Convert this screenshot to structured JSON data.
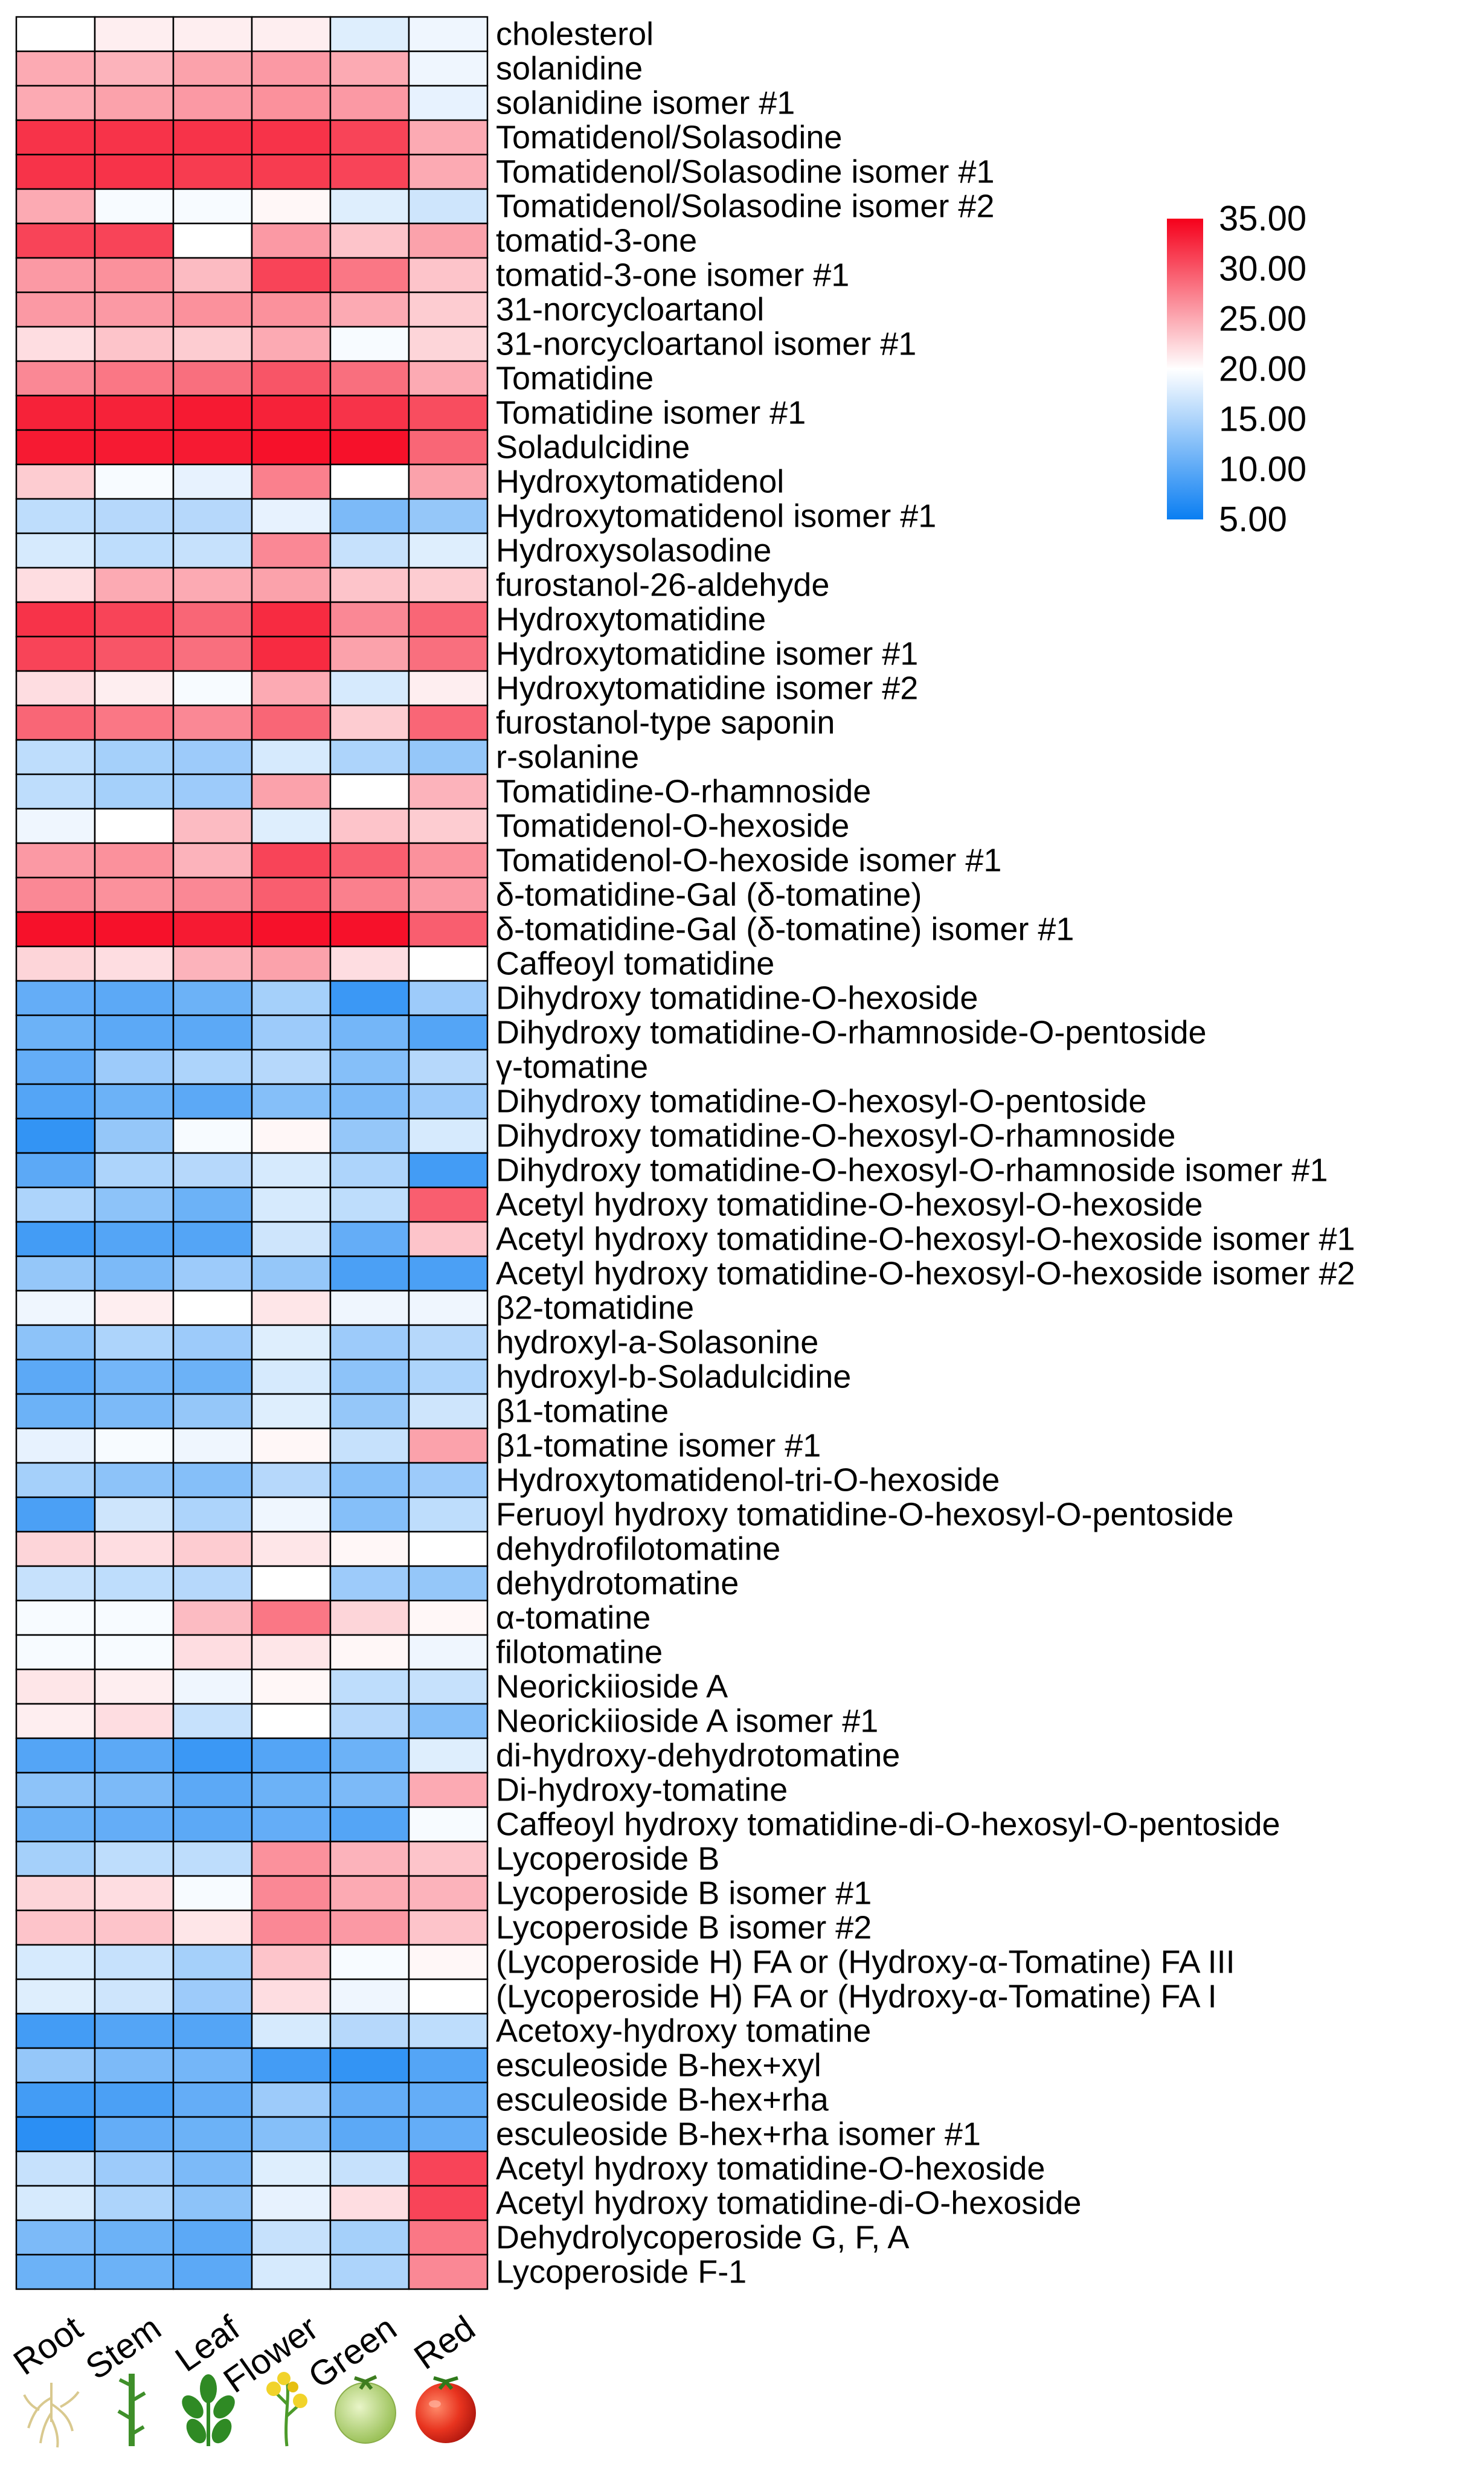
{
  "chart_data": {
    "type": "heatmap",
    "title": "",
    "columns": [
      "Root",
      "Stem",
      "Leaf",
      "Flower",
      "Green",
      "Red"
    ],
    "rows": [
      "cholesterol",
      "solanidine",
      "solanidine isomer #1",
      "Tomatidenol/Solasodine",
      "Tomatidenol/Solasodine isomer #1",
      "Tomatidenol/Solasodine isomer #2",
      "tomatid-3-one",
      "tomatid-3-one isomer #1",
      "31-norcycloartanol",
      "31-norcycloartanol isomer #1",
      "Tomatidine",
      "Tomatidine isomer #1",
      "Soladulcidine",
      "Hydroxytomatidenol",
      "Hydroxytomatidenol isomer #1",
      "Hydroxysolasodine",
      "furostanol-26-aldehyde",
      "Hydroxytomatidine",
      "Hydroxytomatidine isomer #1",
      "Hydroxytomatidine isomer #2",
      "furostanol-type saponin",
      "r-solanine",
      "Tomatidine-O-rhamnoside",
      "Tomatidenol-O-hexoside",
      "Tomatidenol-O-hexoside isomer #1",
      "δ-tomatidine-Gal (δ-tomatine)",
      "δ-tomatidine-Gal (δ-tomatine) isomer #1",
      "Caffeoyl tomatidine",
      "Dihydroxy tomatidine-O-hexoside",
      "Dihydroxy tomatidine-O-rhamnoside-O-pentoside",
      "γ-tomatine",
      "Dihydroxy tomatidine-O-hexosyl-O-pentoside",
      "Dihydroxy tomatidine-O-hexosyl-O-rhamnoside",
      "Dihydroxy tomatidine-O-hexosyl-O-rhamnoside isomer #1",
      "Acetyl hydroxy tomatidine-O-hexosyl-O-hexoside",
      "Acetyl hydroxy tomatidine-O-hexosyl-O-hexoside isomer #1",
      "Acetyl hydroxy tomatidine-O-hexosyl-O-hexoside isomer #2",
      "β2-tomatidine",
      "hydroxyl-a-Solasonine",
      "hydroxyl-b-Soladulcidine",
      "β1-tomatine",
      "β1-tomatine isomer #1",
      "Hydroxytomatidenol-tri-O-hexoside",
      "Feruoyl  hydroxy tomatidine-O-hexosyl-O-pentoside",
      "dehydrofilotomatine",
      "dehydrotomatine",
      "α-tomatine",
      "filotomatine",
      "Neorickiioside A",
      "Neorickiioside A isomer #1",
      "di-hydroxy-dehydrotomatine",
      "Di-hydroxy-tomatine",
      "Caffeoyl hydroxy tomatidine-di-O-hexosyl-O-pentoside",
      "Lycoperoside B",
      "Lycoperoside B isomer #1",
      "Lycoperoside B isomer #2",
      "(Lycoperoside H) FA or (Hydroxy-α-Tomatine) FA III",
      "(Lycoperoside H) FA or (Hydroxy-α-Tomatine) FA I",
      "Acetoxy-hydroxy tomatine",
      "esculeoside B-hex+xyl",
      "esculeoside B-hex+rha",
      "esculeoside B-hex+rha isomer #1",
      "Acetyl hydroxy tomatidine-O-hexoside",
      "Acetyl hydroxy tomatidine-di-O-hexoside",
      "Dehydrolycoperoside G, F, A",
      "Lycoperoside F-1"
    ],
    "values": [
      [
        20.0,
        21.0,
        21.0,
        21.0,
        18.0,
        19.0
      ],
      [
        25.0,
        24.5,
        25.5,
        26.0,
        25.0,
        19.0
      ],
      [
        25.0,
        25.5,
        26.0,
        26.5,
        26.0,
        18.5
      ],
      [
        32.0,
        32.0,
        32.0,
        32.0,
        31.0,
        25.0
      ],
      [
        32.0,
        32.0,
        31.5,
        31.5,
        31.0,
        25.0
      ],
      [
        25.0,
        19.5,
        19.5,
        20.5,
        18.0,
        17.0
      ],
      [
        31.0,
        31.0,
        20.0,
        26.0,
        23.5,
        25.5
      ],
      [
        26.0,
        26.5,
        24.0,
        31.0,
        28.0,
        23.5
      ],
      [
        26.0,
        26.0,
        26.5,
        26.5,
        25.0,
        23.0
      ],
      [
        22.0,
        23.5,
        23.0,
        25.0,
        19.5,
        22.5
      ],
      [
        27.0,
        28.0,
        28.5,
        30.0,
        28.5,
        25.0
      ],
      [
        33.0,
        33.0,
        33.5,
        33.0,
        32.0,
        30.5
      ],
      [
        33.5,
        33.5,
        33.5,
        34.0,
        34.0,
        29.0
      ],
      [
        23.0,
        19.5,
        18.5,
        27.5,
        20.0,
        25.5
      ],
      [
        16.0,
        15.5,
        15.5,
        18.5,
        12.0,
        13.5
      ],
      [
        17.5,
        16.0,
        16.5,
        27.0,
        16.5,
        18.0
      ],
      [
        22.0,
        25.0,
        25.0,
        25.5,
        23.5,
        23.0
      ],
      [
        32.0,
        31.0,
        29.0,
        32.5,
        27.0,
        29.0
      ],
      [
        31.0,
        30.0,
        28.5,
        32.5,
        25.5,
        28.5
      ],
      [
        22.0,
        21.0,
        19.5,
        25.0,
        17.5,
        21.0
      ],
      [
        29.0,
        28.0,
        27.0,
        29.0,
        23.0,
        29.0
      ],
      [
        16.0,
        14.5,
        14.0,
        17.5,
        15.0,
        13.5
      ],
      [
        16.0,
        14.5,
        14.0,
        25.5,
        20.0,
        24.5
      ],
      [
        19.0,
        20.0,
        24.0,
        18.0,
        23.5,
        23.0
      ],
      [
        26.0,
        26.5,
        24.5,
        31.0,
        29.5,
        26.5
      ],
      [
        27.0,
        26.5,
        27.0,
        29.5,
        27.5,
        26.0
      ],
      [
        34.0,
        34.0,
        33.5,
        34.0,
        34.0,
        29.5
      ],
      [
        22.5,
        22.0,
        24.5,
        25.5,
        22.0,
        20.0
      ],
      [
        10.5,
        10.0,
        11.0,
        14.5,
        8.0,
        14.0
      ],
      [
        11.0,
        10.0,
        10.0,
        14.0,
        11.5,
        9.5
      ],
      [
        10.5,
        14.0,
        15.0,
        15.5,
        12.5,
        15.5
      ],
      [
        9.5,
        11.0,
        10.0,
        12.5,
        12.0,
        14.0
      ],
      [
        7.5,
        13.5,
        19.5,
        20.5,
        13.5,
        17.5
      ],
      [
        10.0,
        15.0,
        15.5,
        17.5,
        15.0,
        8.5
      ],
      [
        15.0,
        13.0,
        11.0,
        17.5,
        16.0,
        29.5
      ],
      [
        8.5,
        9.5,
        9.5,
        17.0,
        10.5,
        23.5
      ],
      [
        13.5,
        12.0,
        14.0,
        13.5,
        9.0,
        9.0
      ],
      [
        19.0,
        21.0,
        20.0,
        21.5,
        19.0,
        19.0
      ],
      [
        13.0,
        15.0,
        14.0,
        18.0,
        14.0,
        15.5
      ],
      [
        10.0,
        11.5,
        11.0,
        17.5,
        13.0,
        15.0
      ],
      [
        11.0,
        12.0,
        13.5,
        18.0,
        13.5,
        17.0
      ],
      [
        18.5,
        19.5,
        19.0,
        20.5,
        16.5,
        25.5
      ],
      [
        14.5,
        13.0,
        12.5,
        15.5,
        12.5,
        14.0
      ],
      [
        9.0,
        17.0,
        15.0,
        19.0,
        12.5,
        16.0
      ],
      [
        22.5,
        22.0,
        23.0,
        21.5,
        20.5,
        20.0
      ],
      [
        16.5,
        16.0,
        15.5,
        20.0,
        14.0,
        13.5
      ],
      [
        19.5,
        19.5,
        24.0,
        28.0,
        22.5,
        20.5
      ],
      [
        19.5,
        19.5,
        22.0,
        21.5,
        20.5,
        19.0
      ],
      [
        21.5,
        21.0,
        19.0,
        20.5,
        16.0,
        16.5
      ],
      [
        21.0,
        22.0,
        16.5,
        20.0,
        15.5,
        12.5
      ],
      [
        9.5,
        10.0,
        8.0,
        9.5,
        11.0,
        18.0
      ],
      [
        13.0,
        12.0,
        10.0,
        11.0,
        12.0,
        25.0
      ],
      [
        11.0,
        10.5,
        10.0,
        10.5,
        9.5,
        19.5
      ],
      [
        14.5,
        16.0,
        16.0,
        26.5,
        24.5,
        23.5
      ],
      [
        22.5,
        22.0,
        19.5,
        27.0,
        25.0,
        24.5
      ],
      [
        23.5,
        23.5,
        21.5,
        27.0,
        26.0,
        23.5
      ],
      [
        17.5,
        16.5,
        14.5,
        23.5,
        19.5,
        20.5
      ],
      [
        18.0,
        17.0,
        14.0,
        22.0,
        19.0,
        20.0
      ],
      [
        8.5,
        9.5,
        9.5,
        17.5,
        15.5,
        16.0
      ],
      [
        13.5,
        12.0,
        11.5,
        8.5,
        7.5,
        9.5
      ],
      [
        8.5,
        9.0,
        10.5,
        14.0,
        10.5,
        10.5
      ],
      [
        7.0,
        10.5,
        11.0,
        12.5,
        10.0,
        10.5
      ],
      [
        16.5,
        14.0,
        12.0,
        18.0,
        16.5,
        31.0
      ],
      [
        17.5,
        15.0,
        13.0,
        18.5,
        22.0,
        31.0
      ],
      [
        12.0,
        11.0,
        10.0,
        16.5,
        14.5,
        28.0
      ],
      [
        11.0,
        11.0,
        10.0,
        17.5,
        15.0,
        27.0
      ]
    ],
    "colorbar": {
      "ticks": [
        "35.00",
        "30.00",
        "25.00",
        "20.00",
        "15.00",
        "10.00",
        "5.00"
      ],
      "min": 5,
      "max": 35,
      "colors": {
        "low": "#0a7ef2",
        "mid": "#ffffff",
        "high": "#f5001b"
      }
    },
    "tissue_icons": [
      "root-icon",
      "stem-icon",
      "leaf-icon",
      "flower-icon",
      "green-fruit-icon",
      "red-fruit-icon"
    ]
  }
}
